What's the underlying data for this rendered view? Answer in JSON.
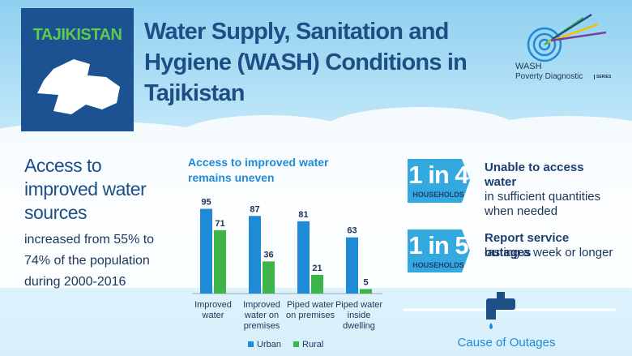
{
  "header": {
    "country": "TAJIKISTAN",
    "title": "Water Supply, Sanitation and Hygiene (WASH) Conditions in Tajikistan",
    "logo": {
      "name": "WASH",
      "subtitle": "Poverty Diagnostic",
      "series": "SERIES"
    }
  },
  "access": {
    "heading": "Access to improved water sources",
    "body": "increased from 55% to 74% of the population during 2000-2016"
  },
  "chart_data": {
    "type": "bar",
    "title": "Access to improved water remains uneven",
    "categories": [
      "Improved water",
      "Improved water on premises",
      "Piped water on premises",
      "Piped water inside dwelling"
    ],
    "series": [
      {
        "name": "Urban",
        "color": "#1f8ad6",
        "values": [
          95,
          87,
          81,
          63
        ]
      },
      {
        "name": "Rural",
        "color": "#3db54a",
        "values": [
          71,
          36,
          21,
          5
        ]
      }
    ]
  },
  "stats": [
    {
      "ratio": "1 in 4",
      "unit": "HOUSEHOLDS",
      "bold": "Unable to access water",
      "rest": "in sufficient quantities when needed"
    },
    {
      "ratio": "1 in 5",
      "unit": "HOUSEHOLDS",
      "bold": "Report service outages",
      "rest": "lasting a week or longer"
    }
  ],
  "footer": {
    "caption": "Cause of Outages"
  }
}
